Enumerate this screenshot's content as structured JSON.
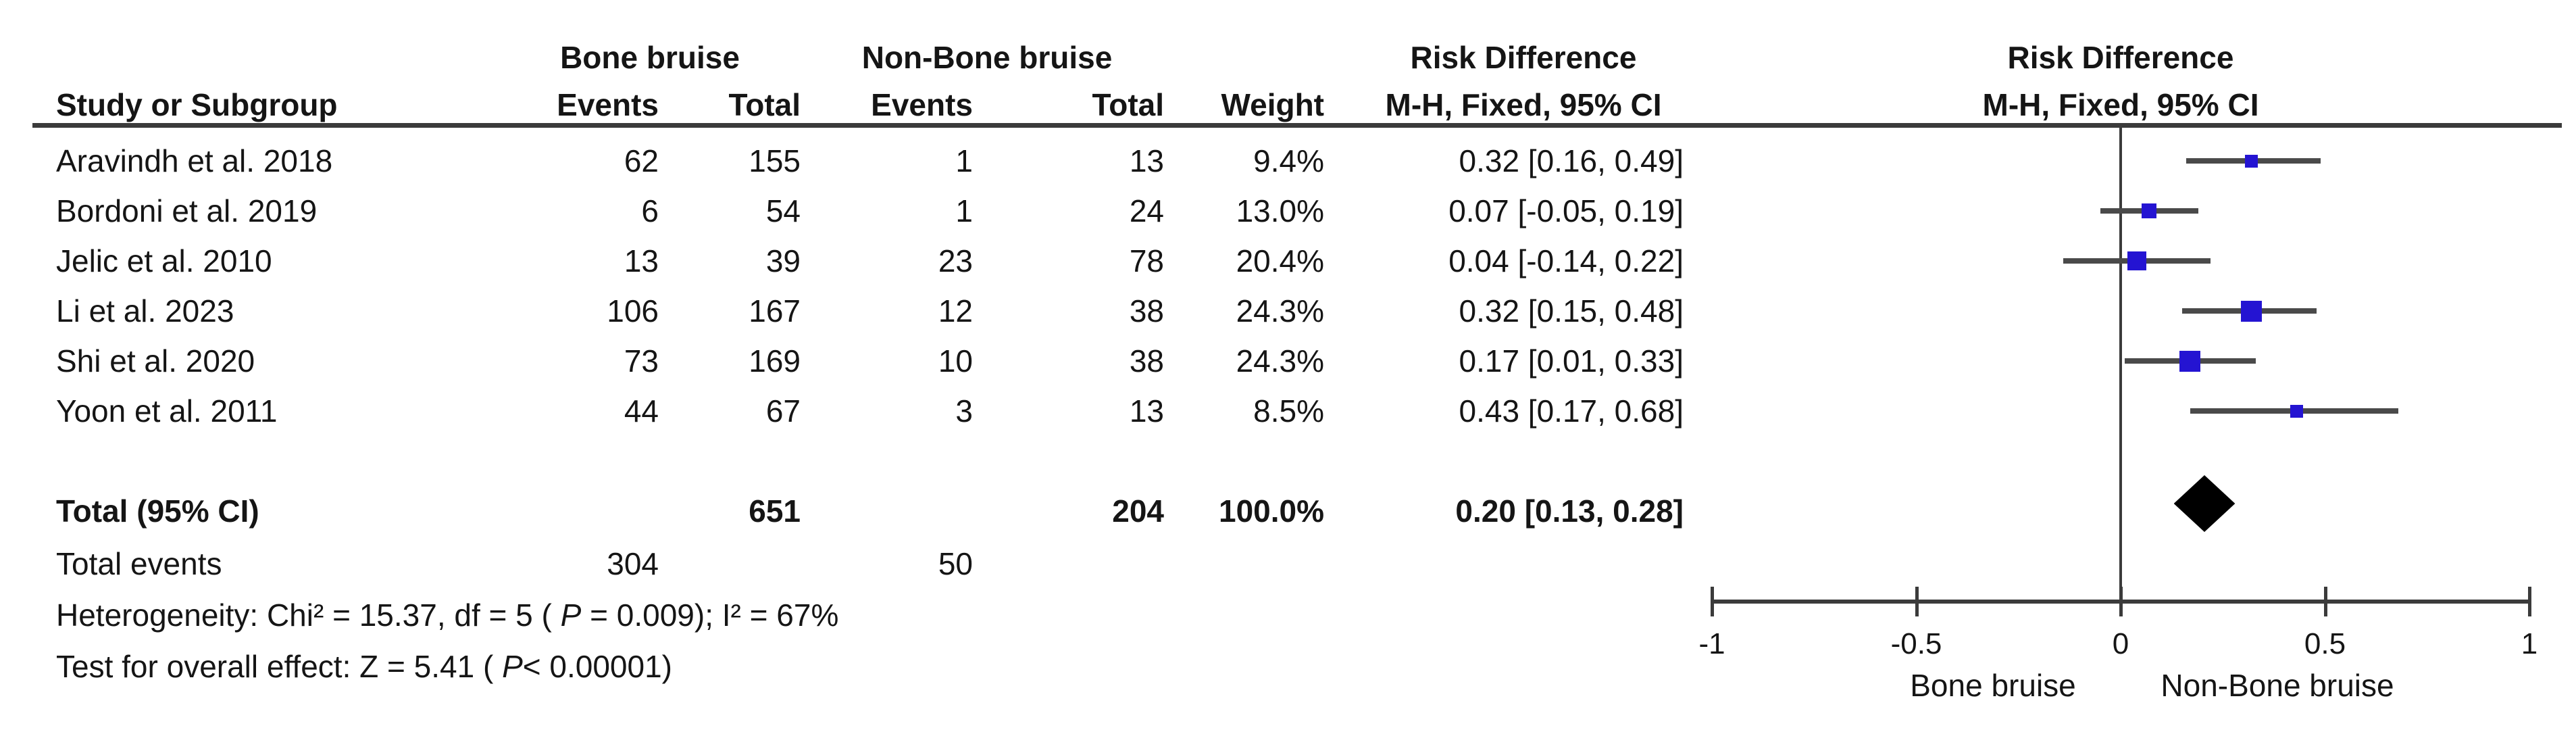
{
  "table": {
    "headers": {
      "study": "Study or Subgroup",
      "group_experimental": "Bone bruise",
      "group_control": "Non-Bone bruise",
      "events_exp": "Events",
      "total_exp": "Total",
      "events_ctrl": "Events",
      "total_ctrl": "Total",
      "weight": "Weight",
      "effect_line1": "Risk Difference",
      "effect_line2": "M-H, Fixed, 95% CI"
    },
    "rows": [
      {
        "study": "Aravindh et al. 2018",
        "events1": "62",
        "total1": "155",
        "events2": "1",
        "total2": "13",
        "weight": "9.4%",
        "rd": "0.32 [0.16, 0.49]"
      },
      {
        "study": "Bordoni et al. 2019",
        "events1": "6",
        "total1": "54",
        "events2": "1",
        "total2": "24",
        "weight": "13.0%",
        "rd": "0.07 [-0.05, 0.19]"
      },
      {
        "study": "Jelic et al. 2010",
        "events1": "13",
        "total1": "39",
        "events2": "23",
        "total2": "78",
        "weight": "20.4%",
        "rd": "0.04 [-0.14, 0.22]"
      },
      {
        "study": "Li et al. 2023",
        "events1": "106",
        "total1": "167",
        "events2": "12",
        "total2": "38",
        "weight": "24.3%",
        "rd": "0.32 [0.15, 0.48]"
      },
      {
        "study": "Shi et al. 2020",
        "events1": "73",
        "total1": "169",
        "events2": "10",
        "total2": "38",
        "weight": "24.3%",
        "rd": "0.17 [0.01, 0.33]"
      },
      {
        "study": "Yoon et al. 2011",
        "events1": "44",
        "total1": "67",
        "events2": "3",
        "total2": "13",
        "weight": "8.5%",
        "rd": "0.43 [0.17, 0.68]"
      }
    ],
    "total_row": {
      "label": "Total (95% CI)",
      "total1": "651",
      "total2": "204",
      "weight": "100.0%",
      "rd": "0.20 [0.13, 0.28]"
    },
    "total_events_row": {
      "label": "Total events",
      "events1": "304",
      "events2": "50"
    },
    "heterogeneity": {
      "pre": "Heterogeneity: Chi² = 15.37, df = 5 ( ",
      "p": "P",
      "post": " = 0.009); I² = 67%"
    },
    "overall_effect": {
      "pre": "Test for overall effect: Z = 5.41 ( ",
      "p": "P",
      "post": "< 0.00001)"
    }
  },
  "plot": {
    "header_line1": "Risk Difference",
    "header_line2": "M-H, Fixed, 95% CI",
    "axis_left_label": "Bone bruise",
    "axis_right_label": "Non-Bone bruise",
    "marker_color": "#2414d2",
    "line_color": "#4a4a4a",
    "diamond_color": "#000000",
    "axis_color": "#3b3b3b"
  },
  "chart_data": {
    "type": "forest",
    "title": "Risk Difference",
    "method": "M-H, Fixed, 95% CI",
    "xlabel_left": "Bone bruise",
    "xlabel_right": "Non-Bone bruise",
    "studies": [
      {
        "name": "Aravindh et al. 2018",
        "events_exp": 62,
        "total_exp": 155,
        "events_ctrl": 1,
        "total_ctrl": 13,
        "weight_pct": 9.4,
        "rd": 0.32,
        "ci_low": 0.16,
        "ci_high": 0.49
      },
      {
        "name": "Bordoni et al. 2019",
        "events_exp": 6,
        "total_exp": 54,
        "events_ctrl": 1,
        "total_ctrl": 24,
        "weight_pct": 13.0,
        "rd": 0.07,
        "ci_low": -0.05,
        "ci_high": 0.19
      },
      {
        "name": "Jelic et al. 2010",
        "events_exp": 13,
        "total_exp": 39,
        "events_ctrl": 23,
        "total_ctrl": 78,
        "weight_pct": 20.4,
        "rd": 0.04,
        "ci_low": -0.14,
        "ci_high": 0.22
      },
      {
        "name": "Li et al. 2023",
        "events_exp": 106,
        "total_exp": 167,
        "events_ctrl": 12,
        "total_ctrl": 38,
        "weight_pct": 24.3,
        "rd": 0.32,
        "ci_low": 0.15,
        "ci_high": 0.48
      },
      {
        "name": "Shi et al. 2020",
        "events_exp": 73,
        "total_exp": 169,
        "events_ctrl": 10,
        "total_ctrl": 38,
        "weight_pct": 24.3,
        "rd": 0.17,
        "ci_low": 0.01,
        "ci_high": 0.33
      },
      {
        "name": "Yoon et al. 2011",
        "events_exp": 44,
        "total_exp": 67,
        "events_ctrl": 3,
        "total_ctrl": 13,
        "weight_pct": 8.5,
        "rd": 0.43,
        "ci_low": 0.17,
        "ci_high": 0.68
      }
    ],
    "total": {
      "label": "Total (95% CI)",
      "total_exp": 651,
      "total_ctrl": 204,
      "events_exp": 304,
      "events_ctrl": 50,
      "weight_pct": 100.0,
      "rd": 0.2,
      "ci_low": 0.13,
      "ci_high": 0.28
    },
    "axis": {
      "min": -1,
      "max": 1,
      "ticks": [
        {
          "v": -1,
          "label": "-1"
        },
        {
          "v": -0.5,
          "label": "-0.5"
        },
        {
          "v": 0,
          "label": "0"
        },
        {
          "v": 0.5,
          "label": "0.5"
        },
        {
          "v": 1,
          "label": "1"
        }
      ]
    },
    "heterogeneity": "Chi² = 15.37, df = 5 (P = 0.009); I² = 67%",
    "overall_effect": "Z = 5.41 (P < 0.00001)"
  }
}
